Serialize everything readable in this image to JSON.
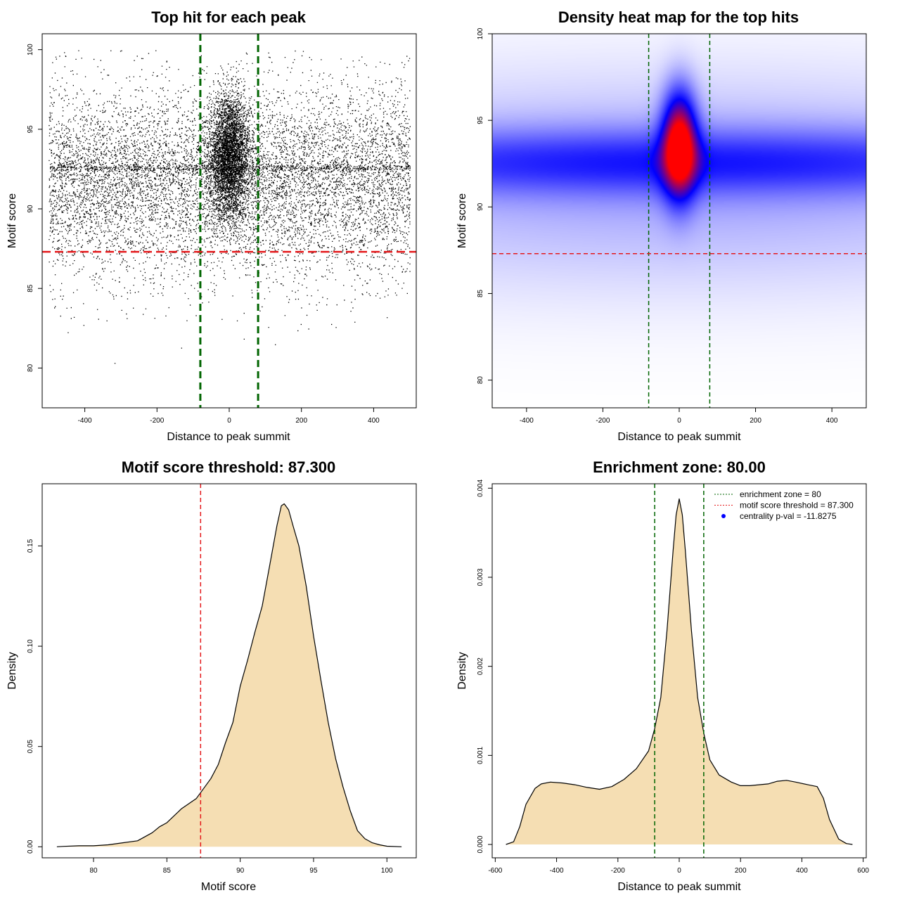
{
  "chart_data": [
    {
      "id": "p1",
      "type": "scatter",
      "title": "Top hit for each peak",
      "xlabel": "Distance to peak summit",
      "ylabel": "Motif score",
      "xlim": [
        -518,
        518
      ],
      "ylim": [
        77.5,
        101
      ],
      "xticks": [
        -400,
        -200,
        0,
        200,
        400
      ],
      "yticks": [
        80,
        85,
        90,
        95,
        100
      ],
      "n_points": 14000,
      "points_summary": {
        "x_range": [
          -500,
          500
        ],
        "background_y_mean": 91.8,
        "background_y_sd": 3.0,
        "center_cluster": {
          "x_mean": 0,
          "x_sd": 28,
          "y_mean": 93.3,
          "y_sd": 1.9
        }
      },
      "vlines": [
        -80,
        80
      ],
      "hline": 87.3,
      "colors": {
        "points": "#000000",
        "vlines": "#006400",
        "hline": "#e41a1c"
      }
    },
    {
      "id": "p2",
      "type": "heatmap",
      "title": "Density heat map for the top hits",
      "xlabel": "Distance to peak summit",
      "ylabel": "Motif score",
      "xlim": [
        -490,
        490
      ],
      "ylim": [
        78.4,
        100
      ],
      "xticks": [
        -400,
        -200,
        0,
        200,
        400
      ],
      "yticks": [
        80,
        85,
        90,
        95,
        100
      ],
      "density_components": [
        {
          "x": 0,
          "y": 93.6,
          "sx": 30,
          "sy": 2.0,
          "w": 1.0
        },
        {
          "x": 0,
          "y": 92.6,
          "sx": 900,
          "sy": 1.3,
          "w": 0.32
        },
        {
          "x": 0,
          "y": 91.5,
          "sx": 900,
          "sy": 4.0,
          "w": 0.14
        }
      ],
      "color_scale": [
        "#ffffff",
        "#0000ff",
        "#ff0000"
      ],
      "vlines": [
        -80,
        80
      ],
      "hline": 87.3,
      "colors": {
        "vlines": "#006400",
        "hline": "#e41a1c"
      }
    },
    {
      "id": "p3",
      "type": "area",
      "title": "Motif score threshold: 87.300",
      "xlabel": "Motif score",
      "ylabel": "Density",
      "xlim": [
        76.5,
        102
      ],
      "ylim": [
        -0.0055,
        0.181
      ],
      "xticks": [
        80,
        85,
        90,
        95,
        100
      ],
      "yticks": [
        0.0,
        0.05,
        0.1,
        0.15
      ],
      "ytick_labels": [
        "0.00",
        "0.05",
        "0.10",
        "0.15"
      ],
      "x": [
        77.5,
        78,
        79,
        80,
        81,
        82,
        83,
        84,
        84.5,
        85,
        86,
        87,
        87.3,
        88,
        88.5,
        89,
        89.5,
        90,
        90.5,
        91,
        91.5,
        92,
        92.5,
        92.8,
        93,
        93.3,
        93.6,
        94,
        94.5,
        95,
        95.5,
        96,
        96.5,
        97,
        97.5,
        98,
        98.5,
        99,
        99.5,
        100,
        101
      ],
      "y": [
        0.0,
        0.0002,
        0.0005,
        0.0005,
        0.001,
        0.002,
        0.003,
        0.007,
        0.01,
        0.012,
        0.019,
        0.024,
        0.027,
        0.034,
        0.041,
        0.052,
        0.062,
        0.08,
        0.093,
        0.107,
        0.12,
        0.14,
        0.16,
        0.17,
        0.171,
        0.168,
        0.16,
        0.15,
        0.13,
        0.105,
        0.083,
        0.062,
        0.044,
        0.03,
        0.018,
        0.008,
        0.004,
        0.002,
        0.001,
        0.0003,
        0.0
      ],
      "vline": 87.3,
      "colors": {
        "fill": "#f5deb3",
        "line": "#000000",
        "vline": "#e41a1c"
      }
    },
    {
      "id": "p4",
      "type": "area",
      "title": "Enrichment zone: 80.00",
      "xlabel": "Distance to peak summit",
      "ylabel": "Density",
      "xlim": [
        -610,
        610
      ],
      "ylim": [
        -0.00015,
        0.00405
      ],
      "xticks": [
        -600,
        -400,
        -200,
        0,
        200,
        400,
        600
      ],
      "yticks": [
        0.0,
        0.001,
        0.002,
        0.003,
        0.004
      ],
      "ytick_labels": [
        "0.000",
        "0.001",
        "0.002",
        "0.003",
        "0.004"
      ],
      "x": [
        -565,
        -540,
        -520,
        -500,
        -470,
        -450,
        -420,
        -380,
        -340,
        -300,
        -260,
        -220,
        -180,
        -140,
        -100,
        -80,
        -60,
        -40,
        -20,
        -10,
        0,
        10,
        20,
        40,
        60,
        80,
        100,
        130,
        170,
        200,
        230,
        260,
        290,
        320,
        350,
        380,
        420,
        450,
        470,
        490,
        520,
        545,
        565
      ],
      "y": [
        0.0,
        3e-05,
        0.0002,
        0.00045,
        0.00063,
        0.00068,
        0.0007,
        0.00069,
        0.00067,
        0.00064,
        0.00062,
        0.00065,
        0.00073,
        0.00085,
        0.00105,
        0.0013,
        0.00165,
        0.0024,
        0.0033,
        0.0037,
        0.00388,
        0.0037,
        0.0033,
        0.0024,
        0.00165,
        0.00125,
        0.00095,
        0.00078,
        0.0007,
        0.00066,
        0.00066,
        0.00067,
        0.00068,
        0.00071,
        0.00072,
        0.0007,
        0.00067,
        0.00065,
        0.00052,
        0.00028,
        6e-05,
        1e-05,
        0.0
      ],
      "vlines": [
        -80,
        80
      ],
      "colors": {
        "fill": "#f5deb3",
        "line": "#000000",
        "vlines": "#006400"
      },
      "legend": {
        "position": "top-right",
        "entries": [
          {
            "label": "enrichment zone = 80",
            "kind": "dotted-line",
            "color": "#006400"
          },
          {
            "label": "motif score threshold = 87.300",
            "kind": "dotted-line",
            "color": "#e41a1c"
          },
          {
            "label": "centrality p-val = -11.8275",
            "kind": "point",
            "color": "#0000ff"
          }
        ]
      }
    }
  ]
}
